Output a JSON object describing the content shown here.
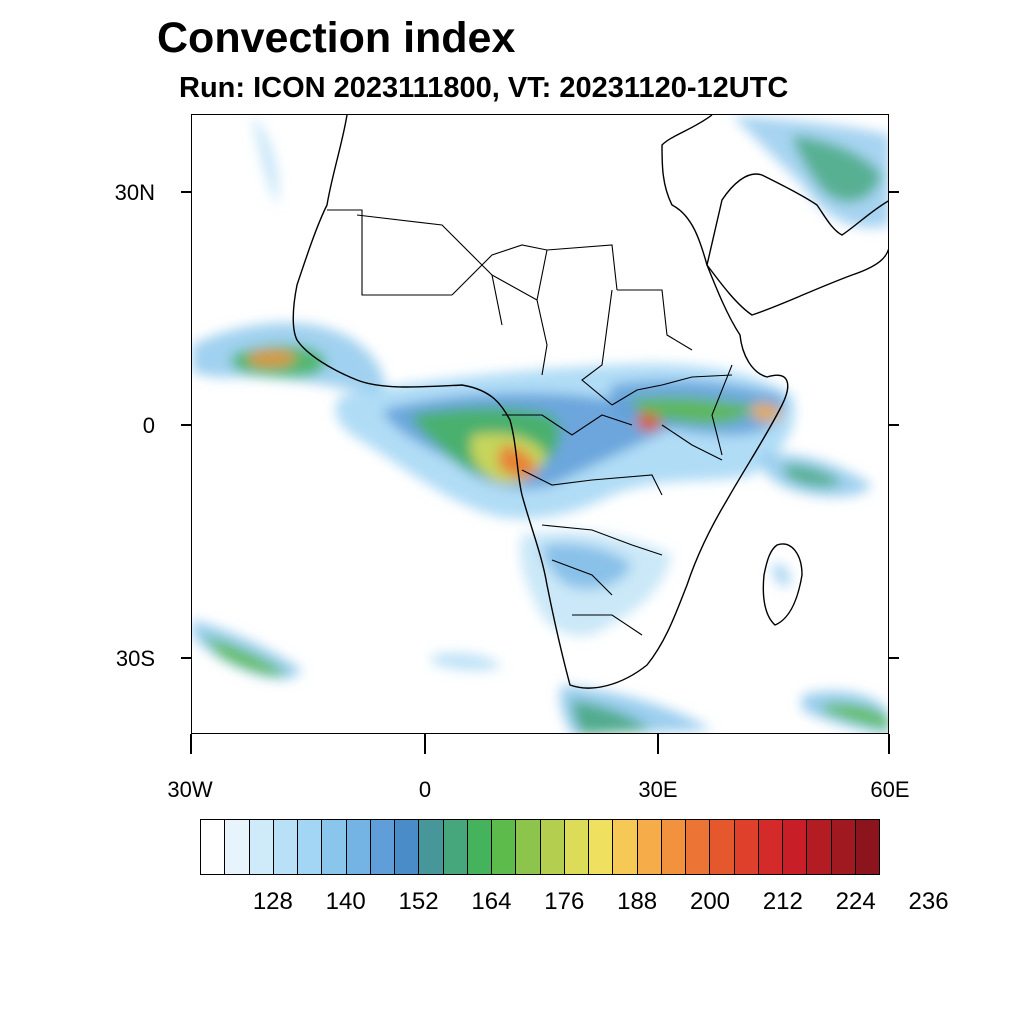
{
  "title": "Convection index",
  "subtitle": "Run: ICON 2023111800,  VT: 20231120-12UTC",
  "map": {
    "region": "Africa",
    "lat_labels": [
      "30N",
      "0",
      "30S"
    ],
    "lon_labels": [
      "30W",
      "0",
      "30E",
      "60E"
    ]
  },
  "colorbar": {
    "labels": [
      "128",
      "140",
      "152",
      "164",
      "176",
      "188",
      "200",
      "212",
      "224",
      "236"
    ],
    "colors": [
      "#ffffff",
      "#e8f4fc",
      "#cfeaf8",
      "#b8e0f6",
      "#a2d6f4",
      "#8ac6ec",
      "#74b4e4",
      "#5f9ed8",
      "#4a8cc8",
      "#47979a",
      "#46a67c",
      "#45b35c",
      "#5cbb4a",
      "#8cc44c",
      "#b4cf50",
      "#dcdc58",
      "#f0e060",
      "#f6c855",
      "#f6ac48",
      "#f2923e",
      "#ec7434",
      "#e5582e",
      "#de402c",
      "#d42a2a",
      "#c81e28",
      "#b41c24",
      "#a01820",
      "#8c141c"
    ]
  }
}
